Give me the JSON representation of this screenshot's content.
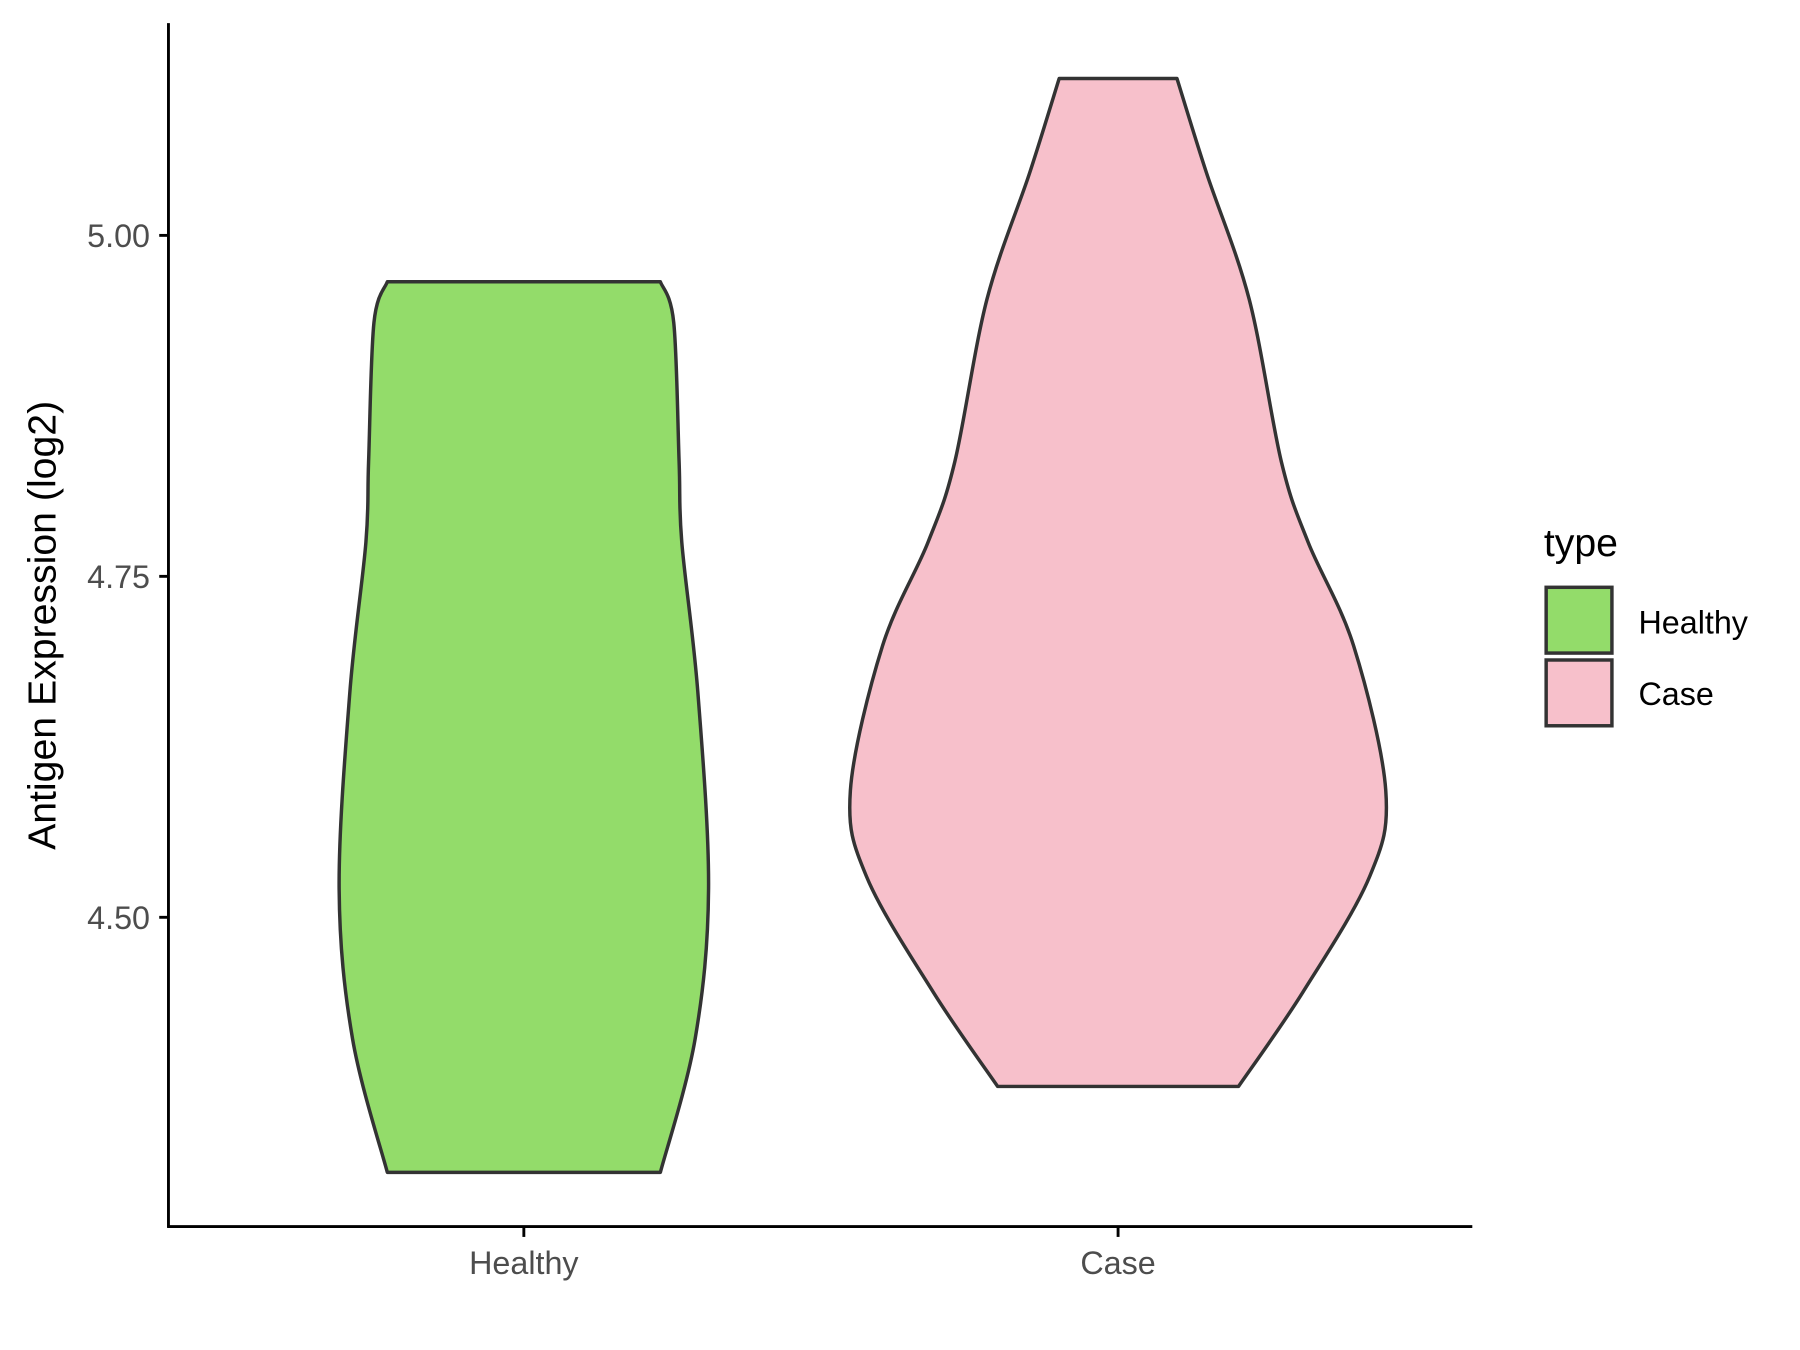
{
  "chart_data": {
    "type": "violin",
    "title": "",
    "xlabel": "",
    "ylabel": "Antigen Expression (log2)",
    "categories": [
      "Healthy",
      "Case"
    ],
    "yticks": [
      4.5,
      4.75,
      5.0
    ],
    "ytick_labels": [
      "4.50",
      "4.75",
      "5.00"
    ],
    "ylim": [
      4.275,
      5.155
    ],
    "grid": false,
    "legend": {
      "title": "type",
      "placement": "right",
      "entries": [
        "Healthy",
        "Case"
      ]
    },
    "colors": {
      "Healthy": "#93DC6A",
      "Case": "#F7C0CB",
      "outline": "#333333"
    },
    "series": [
      {
        "name": "Healthy",
        "min": 4.313,
        "max": 4.966,
        "density_profile": [
          {
            "y": 4.313,
            "relative_width": 0.51
          },
          {
            "y": 4.411,
            "relative_width": 0.64
          },
          {
            "y": 4.521,
            "relative_width": 0.69
          },
          {
            "y": 4.665,
            "relative_width": 0.65
          },
          {
            "y": 4.775,
            "relative_width": 0.59
          },
          {
            "y": 4.834,
            "relative_width": 0.58
          },
          {
            "y": 4.936,
            "relative_width": 0.56
          },
          {
            "y": 4.966,
            "relative_width": 0.51
          }
        ]
      },
      {
        "name": "Case",
        "min": 4.376,
        "max": 5.115,
        "density_profile": [
          {
            "y": 4.376,
            "relative_width": 0.45
          },
          {
            "y": 4.445,
            "relative_width": 0.69
          },
          {
            "y": 4.53,
            "relative_width": 0.94
          },
          {
            "y": 4.593,
            "relative_width": 1.0
          },
          {
            "y": 4.699,
            "relative_width": 0.88
          },
          {
            "y": 4.775,
            "relative_width": 0.71
          },
          {
            "y": 4.834,
            "relative_width": 0.61
          },
          {
            "y": 4.953,
            "relative_width": 0.49
          },
          {
            "y": 5.046,
            "relative_width": 0.33
          },
          {
            "y": 5.115,
            "relative_width": 0.22
          }
        ]
      }
    ]
  }
}
